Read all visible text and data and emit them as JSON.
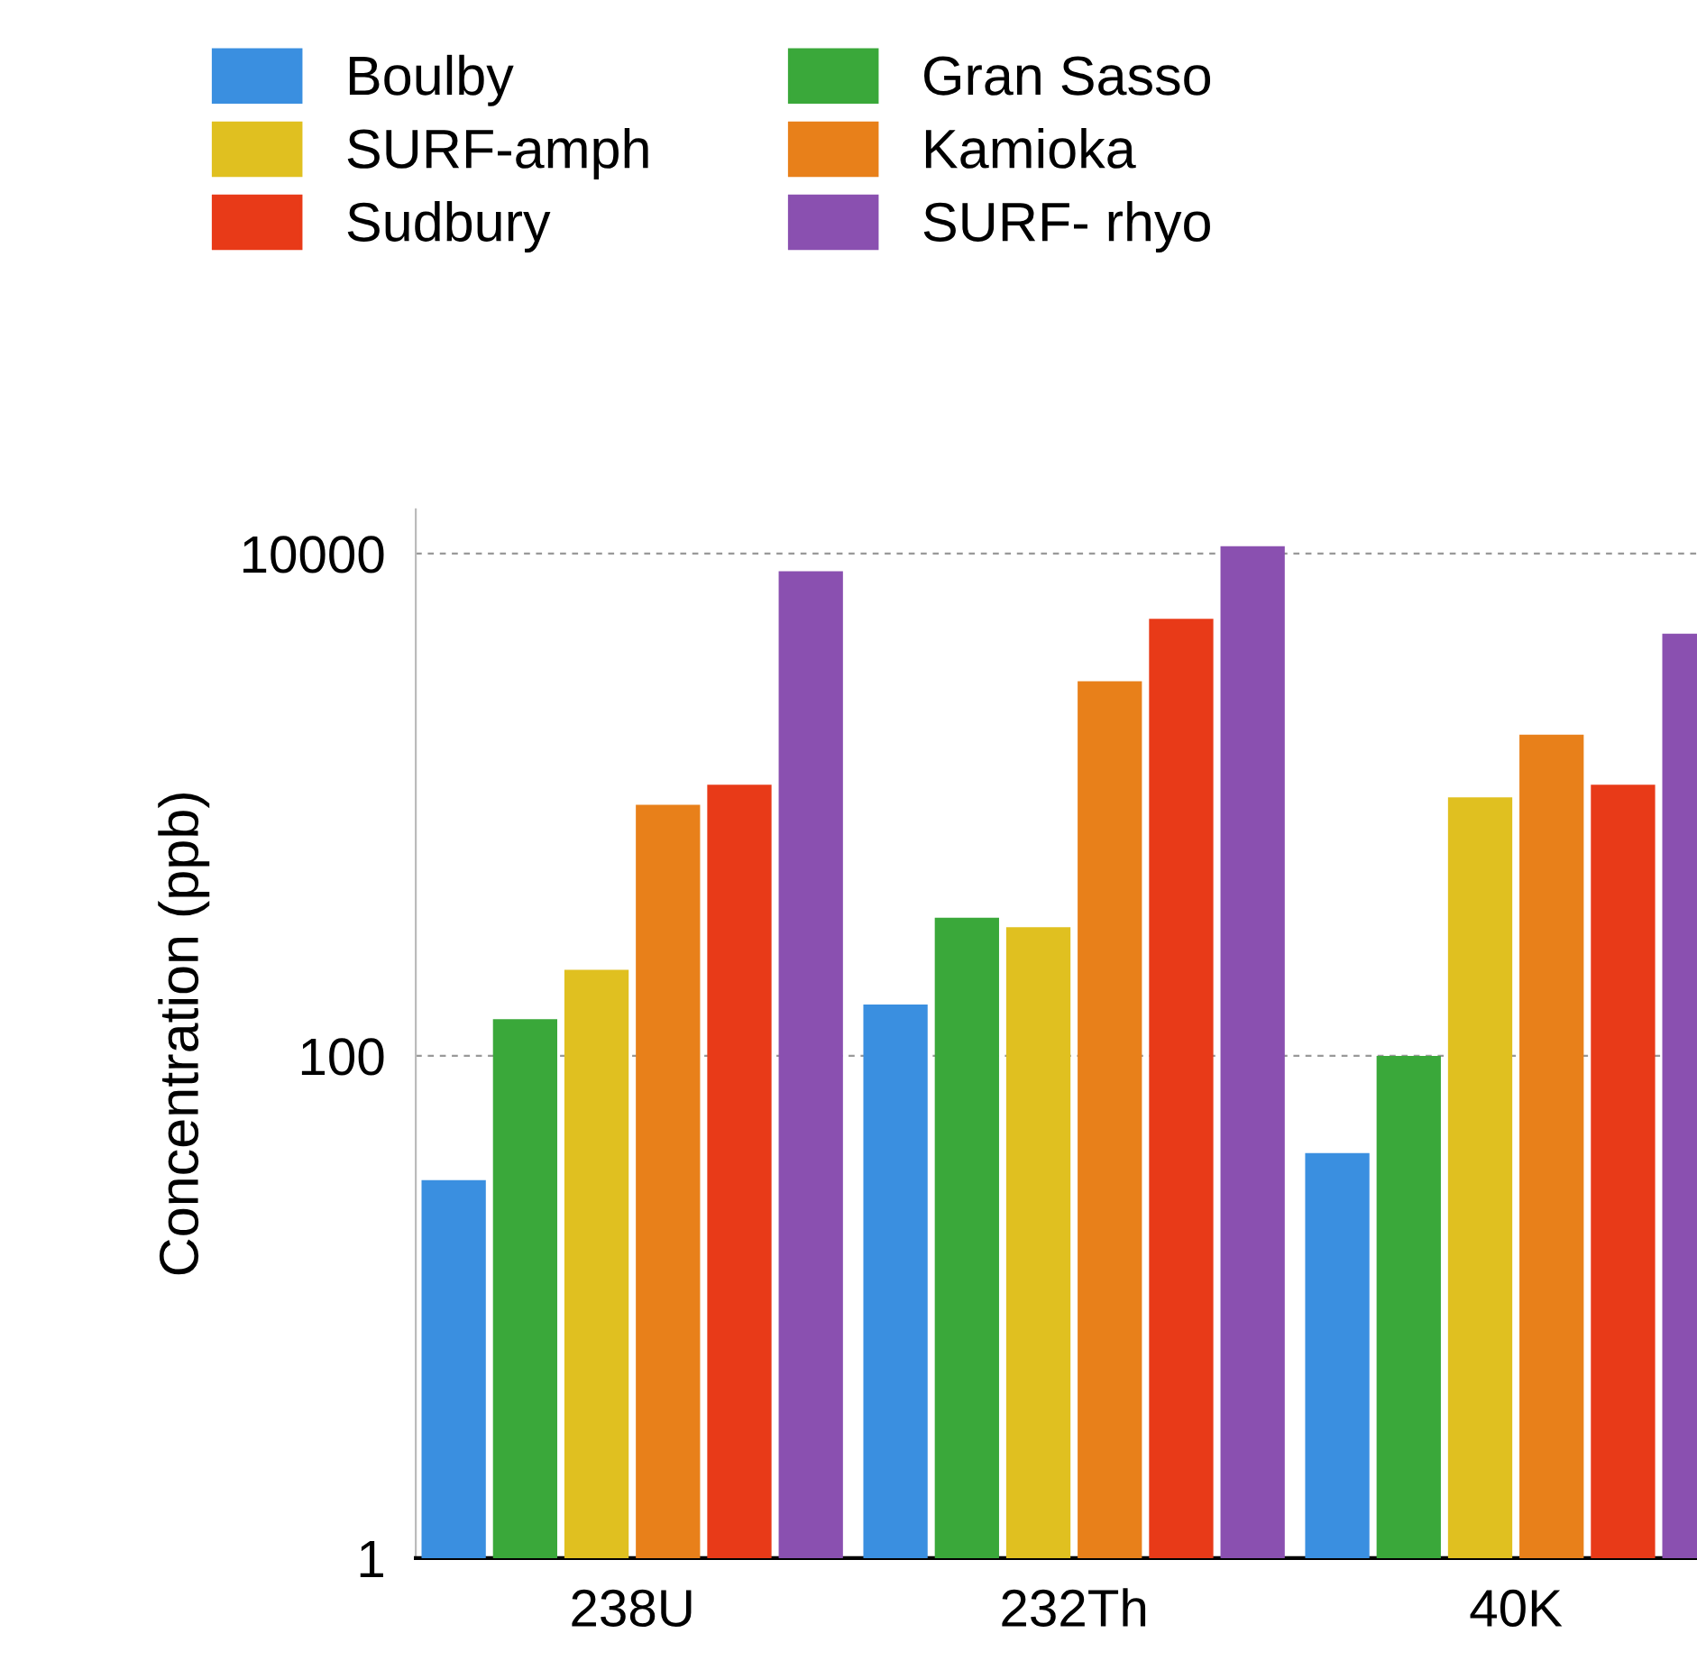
{
  "chart_data": {
    "type": "bar",
    "ylabel": "Concentration (ppb)",
    "categories": [
      "238U",
      "232Th",
      "40K"
    ],
    "series": [
      {
        "name": "Boulby",
        "color": "#3a8fe0",
        "values": [
          32,
          160,
          41
        ]
      },
      {
        "name": "Gran Sasso",
        "color": "#3aa83a",
        "values": [
          140,
          355,
          100
        ]
      },
      {
        "name": "SURF-amph",
        "color": "#e0c020",
        "values": [
          220,
          325,
          1070
        ]
      },
      {
        "name": "Kamioka",
        "color": "#e8801a",
        "values": [
          1000,
          3100,
          1900
        ]
      },
      {
        "name": "Sudbury",
        "color": "#e83a18",
        "values": [
          1200,
          5500,
          1200
        ]
      },
      {
        "name": "SURF- rhyo",
        "color": "#8a50b0",
        "values": [
          8500,
          10700,
          4800
        ]
      }
    ],
    "log": true,
    "ylim": [
      1,
      15000
    ],
    "yticks": [
      1,
      100,
      10000
    ],
    "grid": "y",
    "legend": "top"
  }
}
